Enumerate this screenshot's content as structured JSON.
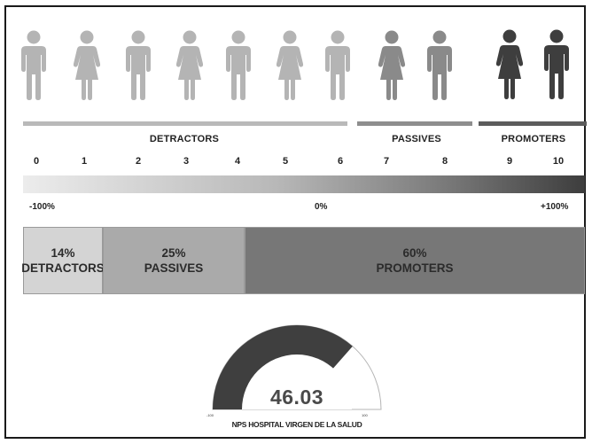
{
  "scale": {
    "groups": [
      {
        "label": "DETRACTORS",
        "color": "#b9b9b9"
      },
      {
        "label": "PASSIVES",
        "color": "#8e8e8e"
      },
      {
        "label": "PROMOTERS",
        "color": "#5c5c5c"
      }
    ],
    "scores": [
      "0",
      "1",
      "2",
      "3",
      "4",
      "5",
      "6",
      "7",
      "8",
      "9",
      "10"
    ],
    "gradient_labels": {
      "min": "-100%",
      "mid": "0%",
      "max": "+100%"
    }
  },
  "people": [
    {
      "gender": "male",
      "group": "detractor",
      "color": "#b4b4b4"
    },
    {
      "gender": "female",
      "group": "detractor",
      "color": "#b4b4b4"
    },
    {
      "gender": "male",
      "group": "detractor",
      "color": "#b4b4b4"
    },
    {
      "gender": "female",
      "group": "detractor",
      "color": "#b4b4b4"
    },
    {
      "gender": "male",
      "group": "detractor",
      "color": "#b4b4b4"
    },
    {
      "gender": "female",
      "group": "detractor",
      "color": "#b4b4b4"
    },
    {
      "gender": "male",
      "group": "detractor",
      "color": "#b4b4b4"
    },
    {
      "gender": "female",
      "group": "passive",
      "color": "#8a8a8a"
    },
    {
      "gender": "male",
      "group": "passive",
      "color": "#8a8a8a"
    },
    {
      "gender": "female",
      "group": "promoter",
      "color": "#3e3e3e"
    },
    {
      "gender": "male",
      "group": "promoter",
      "color": "#3e3e3e"
    }
  ],
  "distribution": [
    {
      "pct": "14%",
      "label": "DETRACTORS",
      "share": 0.14,
      "color": "#d4d4d4"
    },
    {
      "pct": "25%",
      "label": "PASSIVES",
      "share": 0.25,
      "color": "#aaaaaa"
    },
    {
      "pct": "60%",
      "label": "PROMOTERS",
      "share": 0.6,
      "color": "#777777"
    }
  ],
  "gauge": {
    "value": "46.03",
    "value_num": 46.03,
    "min": "-100",
    "max": "100",
    "title": "NPS HOSPITAL VIRGEN DE LA SALUD",
    "fill_color": "#3f3f3f"
  }
}
